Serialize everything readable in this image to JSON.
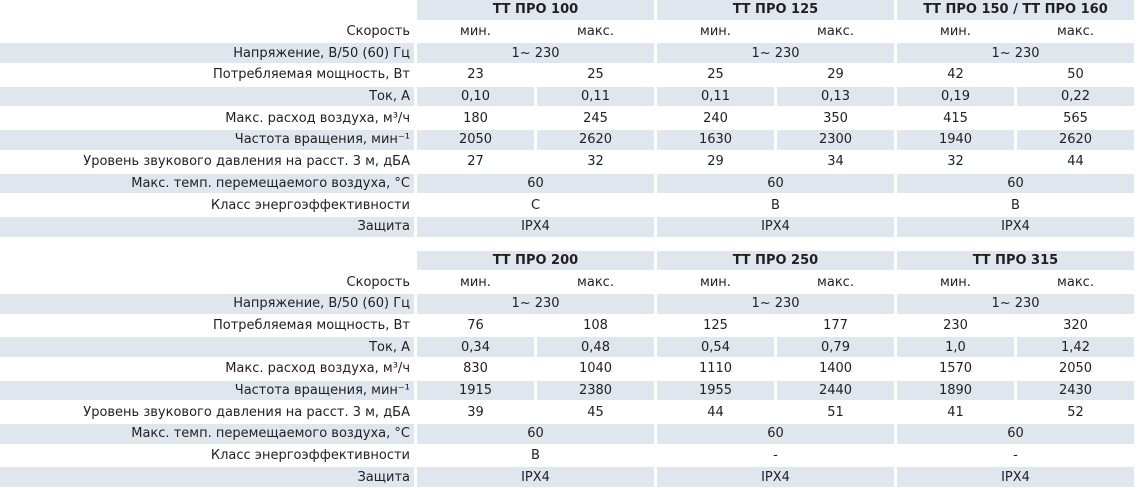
{
  "tables": [
    {
      "models": [
        "ТТ ПРО 100",
        "ТТ ПРО 125",
        "ТТ ПРО 150 / ТТ ПРО 160"
      ],
      "rows": [
        {
          "label": "Скорость",
          "cells": [
            "мин.",
            "макс.",
            "мин.",
            "макс.",
            "мин.",
            "макс."
          ]
        },
        {
          "label": "Напряжение, В/50 (60) Гц",
          "cells": [
            "1~ 230",
            "1~ 230",
            "1~ 230"
          ]
        },
        {
          "label": "Потребляемая мощность, Вт",
          "cells": [
            "23",
            "25",
            "25",
            "29",
            "42",
            "50"
          ]
        },
        {
          "label": "Ток, А",
          "cells": [
            "0,10",
            "0,11",
            "0,11",
            "0,13",
            "0,19",
            "0,22"
          ]
        },
        {
          "label": "Макс. расход воздуха, м³/ч",
          "cells": [
            "180",
            "245",
            "240",
            "350",
            "415",
            "565"
          ]
        },
        {
          "label": "Частота вращения,  мин⁻¹",
          "cells": [
            "2050",
            "2620",
            "1630",
            "2300",
            "1940",
            "2620"
          ]
        },
        {
          "label": "Уровень звукового давления на расст. 3 м, дБА",
          "cells": [
            "27",
            "32",
            "29",
            "34",
            "32",
            "44"
          ]
        },
        {
          "label": "Макс. темп. перемещаемого воздуха, °С",
          "cells": [
            "60",
            "60",
            "60"
          ]
        },
        {
          "label": "Класс энергоэффективности",
          "cells": [
            "C",
            "B",
            "B"
          ]
        },
        {
          "label": "Защита",
          "cells": [
            "IPX4",
            "IPX4",
            "IPX4"
          ]
        }
      ]
    },
    {
      "models": [
        "ТТ ПРО 200",
        "ТТ ПРО 250",
        "ТТ ПРО 315"
      ],
      "rows": [
        {
          "label": "Скорость",
          "cells": [
            "мин.",
            "макс.",
            "мин.",
            "макс.",
            "мин.",
            "макс."
          ]
        },
        {
          "label": "Напряжение, В/50 (60) Гц",
          "cells": [
            "1~ 230",
            "1~ 230",
            "1~ 230"
          ]
        },
        {
          "label": "Потребляемая мощность, Вт",
          "cells": [
            "76",
            "108",
            "125",
            "177",
            "230",
            "320"
          ]
        },
        {
          "label": "Ток, А",
          "cells": [
            "0,34",
            "0,48",
            "0,54",
            "0,79",
            "1,0",
            "1,42"
          ]
        },
        {
          "label": "Макс. расход воздуха, м³/ч",
          "cells": [
            "830",
            "1040",
            "1110",
            "1400",
            "1570",
            "2050"
          ]
        },
        {
          "label": "Частота вращения,  мин⁻¹",
          "cells": [
            "1915",
            "2380",
            "1955",
            "2440",
            "1890",
            "2430"
          ]
        },
        {
          "label": "Уровень звукового давления на расст. 3 м, дБА",
          "cells": [
            "39",
            "45",
            "44",
            "51",
            "41",
            "52"
          ]
        },
        {
          "label": "Макс. темп. перемещаемого воздуха, °С",
          "cells": [
            "60",
            "60",
            "60"
          ]
        },
        {
          "label": "Класс энергоэффективности",
          "cells": [
            "B",
            "-",
            "-"
          ]
        },
        {
          "label": "Защита",
          "cells": [
            "IPX4",
            "IPX4",
            "IPX4"
          ]
        }
      ]
    }
  ]
}
